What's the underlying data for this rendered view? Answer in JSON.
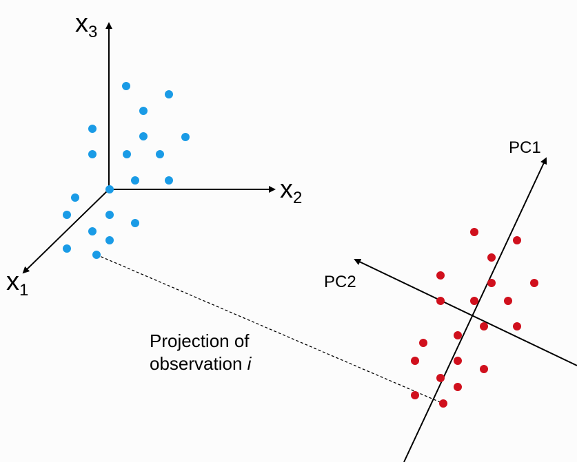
{
  "axes": {
    "x1": {
      "base": "x",
      "sub": "1"
    },
    "x2": {
      "base": "x",
      "sub": "2"
    },
    "x3": {
      "base": "x",
      "sub": "3"
    }
  },
  "pc_axes": {
    "pc1": "PC1",
    "pc2": "PC2"
  },
  "caption": {
    "line1": "Projection of",
    "line2_text": "observation ",
    "line2_italic": "i"
  },
  "colors": {
    "original_points": "#1a9be6",
    "projected_points": "#d0101d",
    "axis": "#000000"
  }
}
